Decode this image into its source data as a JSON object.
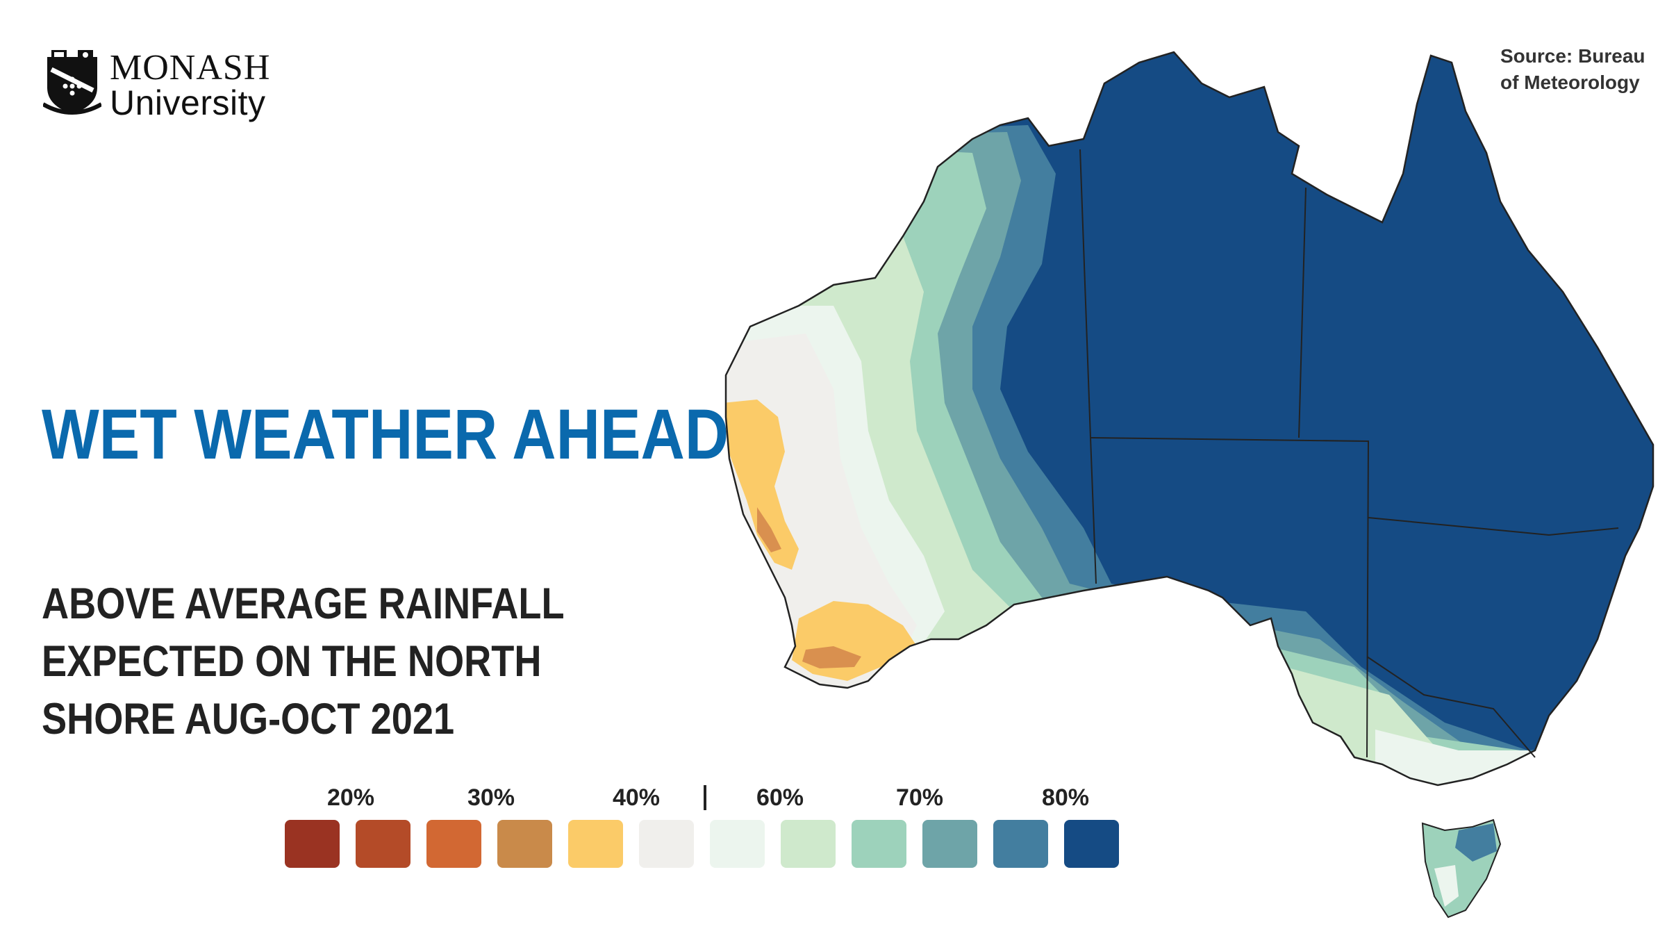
{
  "logo": {
    "name": "MONASH",
    "sub": "University"
  },
  "headline": "WET WEATHER AHEAD",
  "subheading": {
    "lines": [
      "ABOVE AVERAGE RAINFALL",
      "EXPECTED ON THE NORTH",
      "SHORE AUG-OCT 2021"
    ]
  },
  "source": {
    "line1": "Source: Bureau",
    "line2": "of Meteorology"
  },
  "legend": {
    "labels": [
      "20%",
      "30%",
      "40%",
      "60%",
      "70%",
      "80%"
    ],
    "swatch_colors": [
      "#9a3322",
      "#b44b28",
      "#d26833",
      "#c98a4a",
      "#fbcb68",
      "#f0efec",
      "#ecf5ee",
      "#cfe9cc",
      "#9dd2bb",
      "#6ea4a8",
      "#437e9f",
      "#154b84"
    ]
  },
  "map": {
    "colors": {
      "darkest_blue": "#154b84",
      "blue": "#437e9f",
      "teal": "#6ea4a8",
      "mint": "#9dd2bb",
      "light_green": "#cfe9cc",
      "pale": "#ecf5ee",
      "grey": "#f0efec",
      "yellow": "#fbcb68",
      "orange": "#d9904f"
    }
  }
}
